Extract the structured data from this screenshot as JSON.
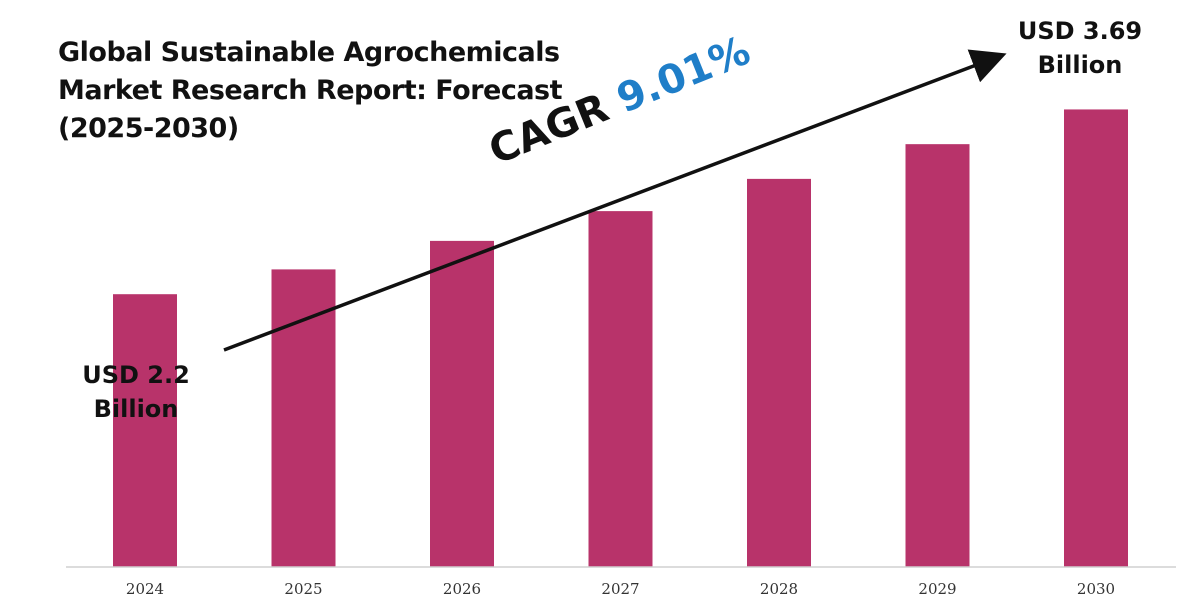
{
  "title_lines": [
    "Global Sustainable Agrochemicals",
    "Market Research Report: Forecast",
    "(2025-2030)"
  ],
  "start_label": {
    "line1": "USD 2.2",
    "line2": "Billion"
  },
  "end_label": {
    "line1": "USD 3.69",
    "line2": "Billion"
  },
  "cagr": {
    "prefix": "CAGR",
    "value": "9.01%"
  },
  "colors": {
    "bar": "#b8336a",
    "cagr_value": "#1f7ec8",
    "text": "#111111"
  },
  "chart_data": {
    "type": "bar",
    "title": "Global Sustainable Agrochemicals Market Research Report: Forecast (2025-2030)",
    "categories": [
      "2024",
      "2025",
      "2026",
      "2027",
      "2028",
      "2029",
      "2030"
    ],
    "values": [
      2.2,
      2.4,
      2.63,
      2.87,
      3.13,
      3.41,
      3.69
    ],
    "unit": "USD Billion",
    "xlabel": "",
    "ylabel": "",
    "ylim": [
      0,
      4.3
    ],
    "grid": false,
    "annotations": [
      "USD 2.2 Billion",
      "USD 3.69 Billion",
      "CAGR 9.01%"
    ]
  }
}
